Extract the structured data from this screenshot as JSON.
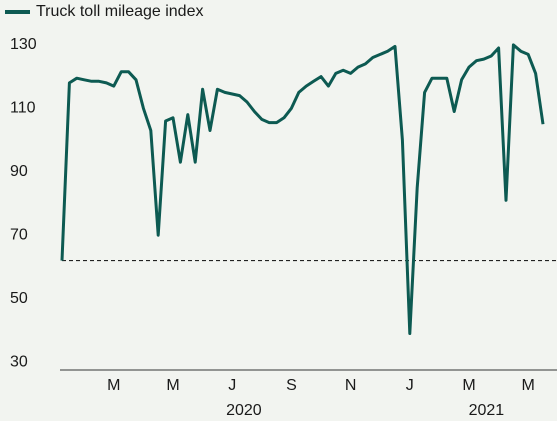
{
  "chart_data": {
    "type": "line",
    "categories": [
      null,
      null,
      null,
      null,
      null,
      null,
      null,
      "M",
      null,
      null,
      null,
      null,
      null,
      null,
      null,
      "M",
      null,
      null,
      null,
      null,
      null,
      null,
      null,
      "J",
      null,
      null,
      null,
      null,
      null,
      null,
      null,
      "S",
      null,
      null,
      null,
      null,
      null,
      null,
      null,
      "N",
      null,
      null,
      null,
      null,
      null,
      null,
      null,
      "J",
      null,
      null,
      null,
      null,
      null,
      null,
      null,
      "M",
      null,
      null,
      null,
      null,
      null,
      null,
      null,
      "M",
      null,
      null
    ],
    "year_labels": [
      "2020",
      "2021"
    ],
    "series": [
      {
        "name": "Truck toll mileage index",
        "color": "#0d5a52",
        "values": [
          62,
          118,
          119.5,
          119,
          118.5,
          118.5,
          118,
          117,
          121.5,
          121.5,
          119,
          110,
          103,
          70,
          106,
          107,
          93,
          108,
          93,
          116,
          103,
          116,
          115,
          114.5,
          114,
          112,
          109,
          106.5,
          105.5,
          105.5,
          107,
          110,
          115,
          117,
          118.5,
          120,
          117,
          121,
          122,
          121,
          123,
          124,
          126,
          127,
          128,
          129.5,
          100,
          39,
          85,
          115,
          119.5,
          119.5,
          119.5,
          109,
          119,
          123,
          125,
          125.5,
          126.5,
          129,
          81,
          130,
          128,
          127,
          121,
          105
        ]
      }
    ],
    "reference_line": {
      "value": 62,
      "style": "dashed"
    },
    "ylim": [
      27.5,
      135
    ],
    "yticks": [
      30,
      50,
      70,
      90,
      110,
      130
    ],
    "grid": false,
    "legend": "top-left"
  }
}
